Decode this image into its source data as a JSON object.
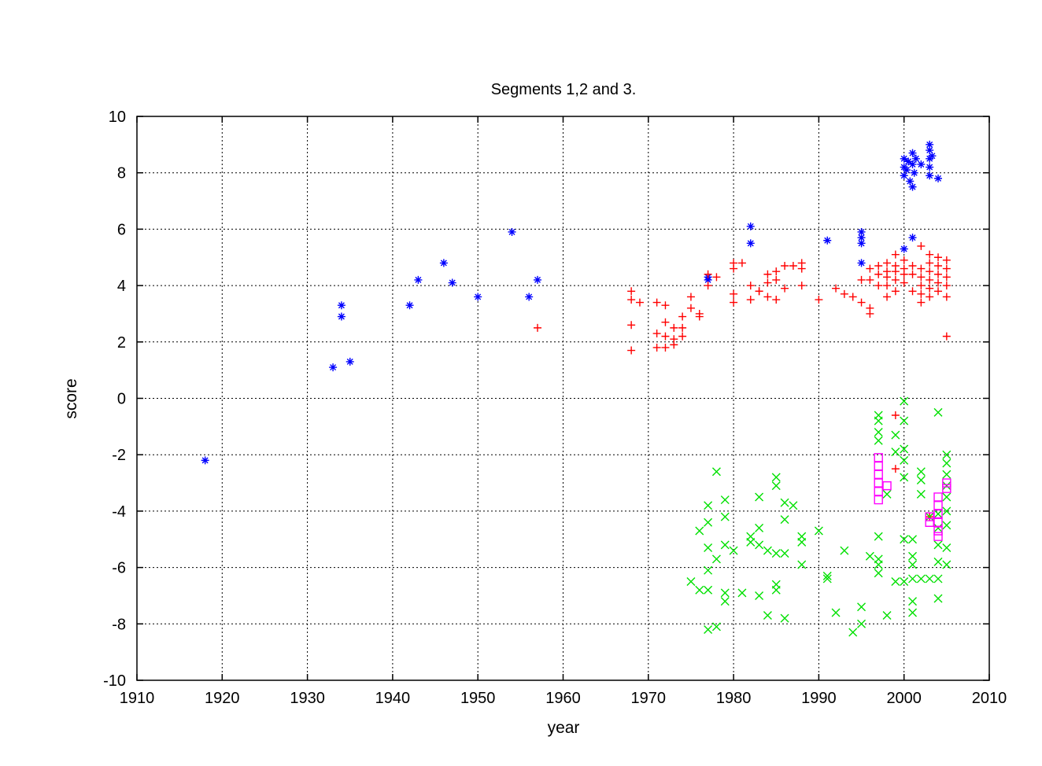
{
  "chart_data": {
    "type": "scatter",
    "title": "Segments 1,2 and 3.",
    "xlabel": "year",
    "ylabel": "score",
    "xlim": [
      1910,
      2010
    ],
    "ylim": [
      -10,
      10
    ],
    "xticks": [
      1910,
      1920,
      1930,
      1940,
      1950,
      1960,
      1970,
      1980,
      1990,
      2000,
      2010
    ],
    "yticks": [
      -10,
      -8,
      -6,
      -4,
      -2,
      0,
      2,
      4,
      6,
      8,
      10
    ],
    "grid": true,
    "legend": "none",
    "series": [
      {
        "marker": "star",
        "color": "#0000ff",
        "points": [
          [
            1918,
            -2.2
          ],
          [
            1933,
            1.1
          ],
          [
            1934,
            3.3
          ],
          [
            1934,
            2.9
          ],
          [
            1935,
            1.3
          ],
          [
            1942,
            3.3
          ],
          [
            1943,
            4.2
          ],
          [
            1946,
            4.8
          ],
          [
            1947,
            4.1
          ],
          [
            1950,
            3.6
          ],
          [
            1954,
            5.9
          ],
          [
            1956,
            3.6
          ],
          [
            1957,
            4.2
          ],
          [
            1977,
            4.3
          ],
          [
            1977,
            4.2
          ],
          [
            1982,
            6.1
          ],
          [
            1982,
            5.5
          ],
          [
            1991,
            5.6
          ],
          [
            1995,
            5.9
          ],
          [
            1995,
            5.7
          ],
          [
            1995,
            5.5
          ],
          [
            1995,
            4.8
          ],
          [
            2000,
            5.3
          ],
          [
            2001,
            5.7
          ],
          [
            2000,
            8.5
          ],
          [
            2000,
            8.2
          ],
          [
            2000,
            7.9
          ],
          [
            2000.3,
            8.1
          ],
          [
            2000.5,
            8.4
          ],
          [
            2000.7,
            7.7
          ],
          [
            2001,
            8.7
          ],
          [
            2001,
            8.3
          ],
          [
            2001,
            7.5
          ],
          [
            2001.2,
            8.0
          ],
          [
            2001.4,
            8.5
          ],
          [
            2002,
            8.3
          ],
          [
            2003,
            9.0
          ],
          [
            2003,
            8.8
          ],
          [
            2003,
            8.5
          ],
          [
            2003,
            8.2
          ],
          [
            2003,
            7.9
          ],
          [
            2003.3,
            8.6
          ],
          [
            2004,
            7.8
          ]
        ]
      },
      {
        "marker": "plus",
        "color": "#ff0000",
        "points": [
          [
            1957,
            2.5
          ],
          [
            1968,
            3.8
          ],
          [
            1968,
            3.5
          ],
          [
            1968,
            2.6
          ],
          [
            1968,
            1.7
          ],
          [
            1969,
            3.4
          ],
          [
            1971,
            3.4
          ],
          [
            1971,
            2.3
          ],
          [
            1971,
            1.8
          ],
          [
            1972,
            3.3
          ],
          [
            1972,
            2.7
          ],
          [
            1972,
            2.2
          ],
          [
            1972,
            1.8
          ],
          [
            1973,
            2.5
          ],
          [
            1973,
            2.1
          ],
          [
            1973,
            1.9
          ],
          [
            1974,
            2.9
          ],
          [
            1974,
            2.5
          ],
          [
            1974,
            2.2
          ],
          [
            1975,
            3.6
          ],
          [
            1975,
            3.2
          ],
          [
            1976,
            3.0
          ],
          [
            1976,
            2.9
          ],
          [
            1977,
            4.4
          ],
          [
            1977,
            4.0
          ],
          [
            1978,
            4.3
          ],
          [
            1980,
            4.8
          ],
          [
            1980,
            4.6
          ],
          [
            1980,
            3.7
          ],
          [
            1980,
            3.4
          ],
          [
            1981,
            4.8
          ],
          [
            1982,
            4.0
          ],
          [
            1982,
            3.5
          ],
          [
            1983,
            3.8
          ],
          [
            1983,
            3.8
          ],
          [
            1984,
            4.4
          ],
          [
            1984,
            4.1
          ],
          [
            1984,
            3.6
          ],
          [
            1985,
            4.5
          ],
          [
            1985,
            4.2
          ],
          [
            1985,
            3.5
          ],
          [
            1986,
            4.7
          ],
          [
            1986,
            3.9
          ],
          [
            1987,
            4.7
          ],
          [
            1988,
            4.8
          ],
          [
            1988,
            4.6
          ],
          [
            1988,
            4.0
          ],
          [
            1990,
            3.5
          ],
          [
            1992,
            3.9
          ],
          [
            1993,
            3.7
          ],
          [
            1994,
            3.6
          ],
          [
            1995,
            4.2
          ],
          [
            1995,
            3.4
          ],
          [
            1996,
            4.6
          ],
          [
            1996,
            4.2
          ],
          [
            1996,
            3.2
          ],
          [
            1996,
            3.0
          ],
          [
            1997,
            4.7
          ],
          [
            1997,
            4.4
          ],
          [
            1997,
            4.0
          ],
          [
            1998,
            4.8
          ],
          [
            1998,
            4.5
          ],
          [
            1998,
            4.3
          ],
          [
            1998,
            4.0
          ],
          [
            1998,
            3.6
          ],
          [
            1999,
            5.1
          ],
          [
            1999,
            4.7
          ],
          [
            1999,
            4.5
          ],
          [
            1999,
            4.2
          ],
          [
            1999,
            3.8
          ],
          [
            1999,
            -0.6
          ],
          [
            1999,
            -2.5
          ],
          [
            2000,
            4.9
          ],
          [
            2000,
            4.6
          ],
          [
            2000,
            4.4
          ],
          [
            2000,
            4.1
          ],
          [
            2001,
            4.7
          ],
          [
            2001,
            4.4
          ],
          [
            2001,
            3.8
          ],
          [
            2002,
            5.4
          ],
          [
            2002,
            4.6
          ],
          [
            2002,
            4.3
          ],
          [
            2002,
            4.0
          ],
          [
            2002,
            3.7
          ],
          [
            2002,
            3.4
          ],
          [
            2003,
            5.1
          ],
          [
            2003,
            4.8
          ],
          [
            2003,
            4.5
          ],
          [
            2003,
            4.2
          ],
          [
            2003,
            3.9
          ],
          [
            2003,
            3.6
          ],
          [
            2003,
            -4.2
          ],
          [
            2004,
            5.0
          ],
          [
            2004,
            4.7
          ],
          [
            2004,
            4.4
          ],
          [
            2004,
            4.1
          ],
          [
            2004,
            3.8
          ],
          [
            2005,
            4.9
          ],
          [
            2005,
            4.6
          ],
          [
            2005,
            4.3
          ],
          [
            2005,
            4.0
          ],
          [
            2005,
            3.6
          ],
          [
            2005,
            2.2
          ]
        ]
      },
      {
        "marker": "cross",
        "color": "#00e000",
        "points": [
          [
            1975,
            -6.5
          ],
          [
            1976,
            -4.7
          ],
          [
            1976,
            -6.8
          ],
          [
            1977,
            -3.8
          ],
          [
            1977,
            -4.4
          ],
          [
            1977,
            -5.3
          ],
          [
            1977,
            -6.1
          ],
          [
            1977,
            -6.8
          ],
          [
            1977,
            -8.2
          ],
          [
            1978,
            -2.6
          ],
          [
            1978,
            -5.7
          ],
          [
            1978,
            -8.1
          ],
          [
            1979,
            -3.6
          ],
          [
            1979,
            -4.2
          ],
          [
            1979,
            -5.2
          ],
          [
            1979,
            -6.9
          ],
          [
            1979,
            -7.2
          ],
          [
            1980,
            -5.4
          ],
          [
            1981,
            -6.9
          ],
          [
            1982,
            -4.9
          ],
          [
            1982,
            -5.1
          ],
          [
            1983,
            -3.5
          ],
          [
            1983,
            -4.6
          ],
          [
            1983,
            -5.2
          ],
          [
            1983,
            -7.0
          ],
          [
            1984,
            -5.4
          ],
          [
            1984,
            -7.7
          ],
          [
            1985,
            -2.8
          ],
          [
            1985,
            -3.1
          ],
          [
            1985,
            -5.5
          ],
          [
            1985,
            -6.6
          ],
          [
            1985,
            -6.8
          ],
          [
            1986,
            -3.7
          ],
          [
            1986,
            -4.3
          ],
          [
            1986,
            -5.5
          ],
          [
            1986,
            -7.8
          ],
          [
            1987,
            -3.8
          ],
          [
            1988,
            -4.9
          ],
          [
            1988,
            -5.1
          ],
          [
            1988,
            -5.9
          ],
          [
            1990,
            -4.7
          ],
          [
            1991,
            -6.3
          ],
          [
            1991,
            -6.4
          ],
          [
            1992,
            -7.6
          ],
          [
            1993,
            -5.4
          ],
          [
            1994,
            -8.3
          ],
          [
            1995,
            -7.4
          ],
          [
            1995,
            -8.0
          ],
          [
            1996,
            -5.6
          ],
          [
            1997,
            -0.6
          ],
          [
            1997,
            -0.8
          ],
          [
            1997,
            -1.2
          ],
          [
            1997,
            -1.5
          ],
          [
            1997,
            -4.9
          ],
          [
            1997,
            -5.7
          ],
          [
            1997,
            -5.9
          ],
          [
            1997,
            -6.2
          ],
          [
            1998,
            -3.4
          ],
          [
            1998,
            -7.7
          ],
          [
            1999,
            -1.3
          ],
          [
            1999,
            -1.9
          ],
          [
            1999,
            -6.5
          ],
          [
            2000,
            -0.1
          ],
          [
            2000,
            -0.8
          ],
          [
            2000,
            -1.8
          ],
          [
            2000,
            -2.2
          ],
          [
            2000,
            -2.8
          ],
          [
            2000,
            -5.0
          ],
          [
            2000,
            -6.5
          ],
          [
            2001,
            -5.0
          ],
          [
            2001,
            -5.6
          ],
          [
            2001,
            -5.9
          ],
          [
            2001,
            -6.4
          ],
          [
            2001,
            -7.6
          ],
          [
            2001,
            -7.2
          ],
          [
            2002,
            -2.6
          ],
          [
            2002,
            -2.9
          ],
          [
            2002,
            -3.4
          ],
          [
            2002,
            -6.4
          ],
          [
            2003,
            -4.2
          ],
          [
            2003,
            -6.4
          ],
          [
            2004,
            -0.5
          ],
          [
            2004,
            -4.1
          ],
          [
            2004,
            -4.6
          ],
          [
            2004,
            -5.2
          ],
          [
            2004,
            -5.8
          ],
          [
            2004,
            -6.4
          ],
          [
            2004,
            -7.1
          ],
          [
            2005,
            -2.0
          ],
          [
            2005,
            -2.3
          ],
          [
            2005,
            -2.7
          ],
          [
            2005,
            -3.1
          ],
          [
            2005,
            -3.5
          ],
          [
            2005,
            -4.0
          ],
          [
            2005,
            -4.5
          ],
          [
            2005,
            -5.3
          ],
          [
            2005,
            -5.9
          ]
        ]
      },
      {
        "marker": "square",
        "color": "#ff00ff",
        "points": [
          [
            1997,
            -2.1
          ],
          [
            1997,
            -2.4
          ],
          [
            1997,
            -2.7
          ],
          [
            1997,
            -3.0
          ],
          [
            1997,
            -3.3
          ],
          [
            1997,
            -3.6
          ],
          [
            1998,
            -3.1
          ],
          [
            2003,
            -4.2
          ],
          [
            2003,
            -4.4
          ],
          [
            2004,
            -3.5
          ],
          [
            2004,
            -3.8
          ],
          [
            2004,
            -4.1
          ],
          [
            2004,
            -4.4
          ],
          [
            2004,
            -4.7
          ],
          [
            2004,
            -4.9
          ],
          [
            2005,
            -3.0
          ],
          [
            2005,
            -3.2
          ]
        ]
      }
    ]
  }
}
